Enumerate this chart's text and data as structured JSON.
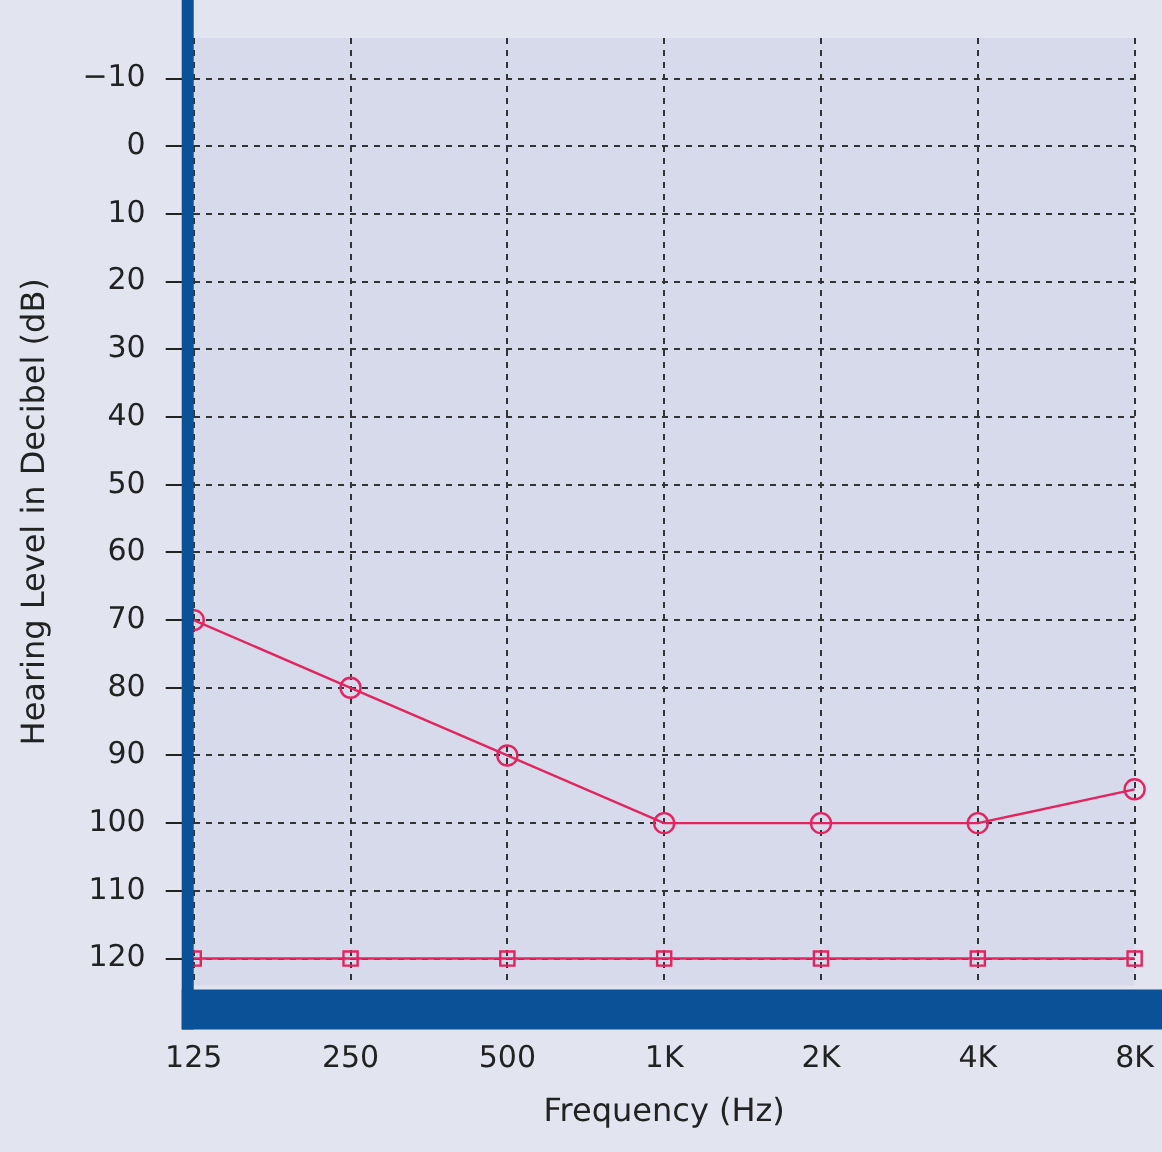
{
  "chart_data": {
    "type": "line",
    "xlabel": "Frequency (Hz)",
    "ylabel": "Hearing Level in Decibel (dB)",
    "categories": [
      "125",
      "250",
      "500",
      "1K",
      "2K",
      "4K",
      "8K"
    ],
    "series": [
      {
        "color": "#e3245e",
        "values": [
          70,
          80,
          90,
          100,
          100,
          100,
          95
        ],
        "marker": "circle"
      },
      {
        "color": "#e3245e",
        "values": [
          120,
          120,
          120,
          120,
          120,
          120,
          120
        ],
        "marker": "square"
      }
    ],
    "ylim": [
      124,
      -16
    ],
    "yticks": [
      {
        "value": -10,
        "label": "−10"
      },
      0,
      10,
      20,
      30,
      40,
      50,
      60,
      70,
      80,
      90,
      100,
      110,
      120
    ],
    "grid": true,
    "line_style": "solid",
    "legend": false
  }
}
